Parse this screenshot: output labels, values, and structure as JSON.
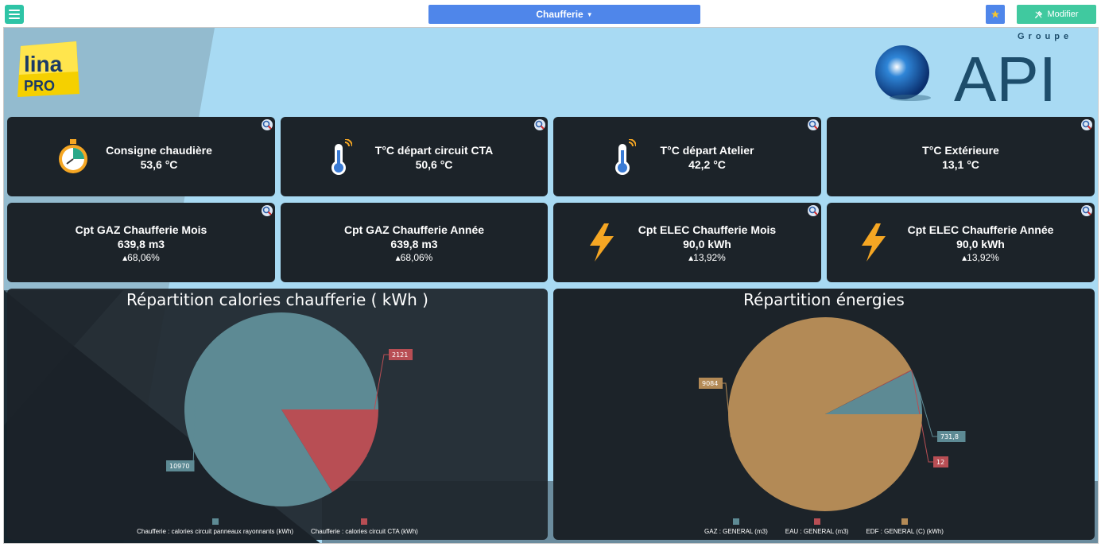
{
  "header": {
    "page_title": "Chaufferie",
    "modify_label": "Modifier"
  },
  "logos": {
    "lina_text": "lina",
    "lina_sub": "PRO",
    "api_group": "Groupe",
    "api_name": "API"
  },
  "tiles_row1": [
    {
      "title": "Consigne chaudière",
      "value": "53,6 °C",
      "icon": "stopwatch-icon"
    },
    {
      "title": "T°C départ circuit CTA",
      "value": "50,6 °C",
      "icon": "thermometer-icon"
    },
    {
      "title": "T°C départ Atelier",
      "value": "42,2 °C",
      "icon": "thermometer-icon"
    },
    {
      "title": "T°C Extérieure",
      "value": "13,1 °C",
      "icon": ""
    }
  ],
  "tiles_row2": [
    {
      "title": "Cpt GAZ Chaufferie Mois",
      "value": "639,8 m3",
      "pct": "▴68,06%",
      "icon": ""
    },
    {
      "title": "Cpt GAZ Chaufferie Année",
      "value": "639,8 m3",
      "pct": "▴68,06%",
      "icon": ""
    },
    {
      "title": "Cpt ELEC Chaufferie Mois",
      "value": "90,0 kWh",
      "pct": "▴13,92%",
      "icon": "lightning-icon"
    },
    {
      "title": "Cpt ELEC Chaufferie Année",
      "value": "90,0 kWh",
      "pct": "▴13,92%",
      "icon": "lightning-icon"
    }
  ],
  "colors": {
    "tile_bg": "#1c2329",
    "teal": "#5d8a94",
    "red": "#b84e54",
    "gold": "#b38a56",
    "lightning": "#f5a623"
  },
  "chart_data": [
    {
      "type": "pie",
      "title": "Répartition calories chaufferie ( kWh )",
      "series": [
        {
          "name": "Chaufferie : calories circuit panneaux rayonnants (kWh)",
          "value": 10970,
          "label": "10970",
          "color": "#5d8a94"
        },
        {
          "name": "Chaufferie : calories circuit CTA (kWh)",
          "value": 2121,
          "label": "2121",
          "color": "#b84e54"
        }
      ],
      "legend": "bottom"
    },
    {
      "type": "pie",
      "title": "Répartition énergies",
      "series": [
        {
          "name": "GAZ : GENERAL (m3)",
          "value": 731.8,
          "label": "731,8",
          "color": "#5d8a94"
        },
        {
          "name": "EAU : GENERAL (m3)",
          "value": 12,
          "label": "12",
          "color": "#b84e54"
        },
        {
          "name": "EDF : GENERAL (C) (kWh)",
          "value": 9084,
          "label": "9084",
          "color": "#b38a56"
        }
      ],
      "legend": "bottom"
    }
  ]
}
